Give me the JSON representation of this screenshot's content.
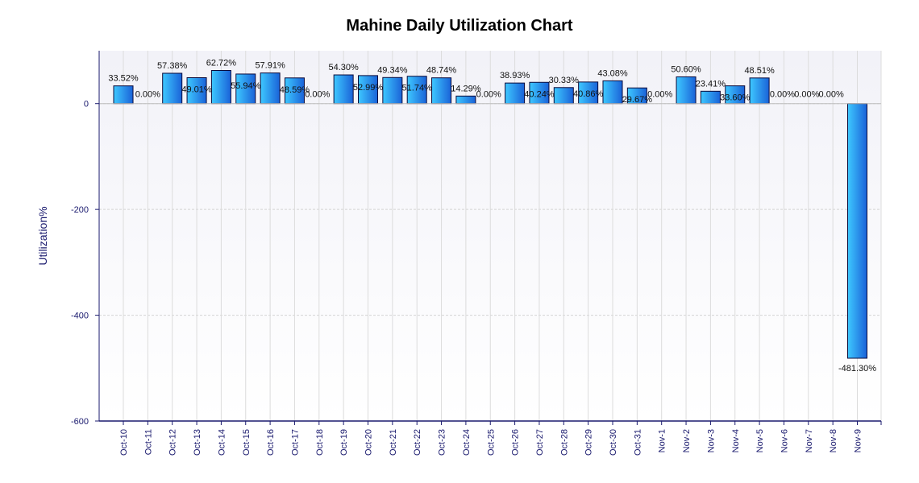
{
  "chart_data": {
    "type": "bar",
    "title": "Mahine Daily Utilization Chart",
    "xlabel": "",
    "ylabel": "Utilization%",
    "ylim": [
      -600,
      100
    ],
    "yticks": [
      0,
      -200,
      -400,
      -600
    ],
    "grid": true,
    "categories": [
      "Oct-10",
      "Oct-11",
      "Oct-12",
      "Oct-13",
      "Oct-14",
      "Oct-15",
      "Oct-16",
      "Oct-17",
      "Oct-18",
      "Oct-19",
      "Oct-20",
      "Oct-21",
      "Oct-22",
      "Oct-23",
      "Oct-24",
      "Oct-25",
      "Oct-26",
      "Oct-27",
      "Oct-28",
      "Oct-29",
      "Oct-30",
      "Oct-31",
      "Nov-1",
      "Nov-2",
      "Nov-3",
      "Nov-4",
      "Nov-5",
      "Nov-6",
      "Nov-7",
      "Nov-8",
      "Nov-9"
    ],
    "values": [
      33.52,
      0,
      57.38,
      49.01,
      62.72,
      55.94,
      57.91,
      48.59,
      0,
      54.3,
      52.99,
      49.34,
      51.74,
      48.74,
      14.29,
      0,
      38.93,
      40.24,
      30.33,
      40.86,
      43.08,
      29.67,
      0,
      50.6,
      23.41,
      33.6,
      48.51,
      0,
      0,
      0,
      -481.3
    ],
    "labels": [
      "33.52%",
      "0.00%",
      "57.38%",
      "49.01%",
      "62.72%",
      "55.94%",
      "57.91%",
      "48.59%",
      "0.00%",
      "54.30%",
      "52.99%",
      "49.34%",
      "51.74%",
      "48.74%",
      "14.29%",
      "0.00%",
      "38.93%",
      "40.24%",
      "30.33%",
      "40.86%",
      "43.08%",
      "29.67%",
      "0.00%",
      "50.60%",
      "23.41%",
      "33.60%",
      "48.51%",
      "0.00%",
      "0.00%",
      "0.00%",
      "-481.30%"
    ],
    "colors": {
      "bar_light": "#3ec8ff",
      "bar_dark": "#1a62d8",
      "bar_stroke": "#0a0a3a",
      "axis": "#1a1a6e"
    }
  }
}
